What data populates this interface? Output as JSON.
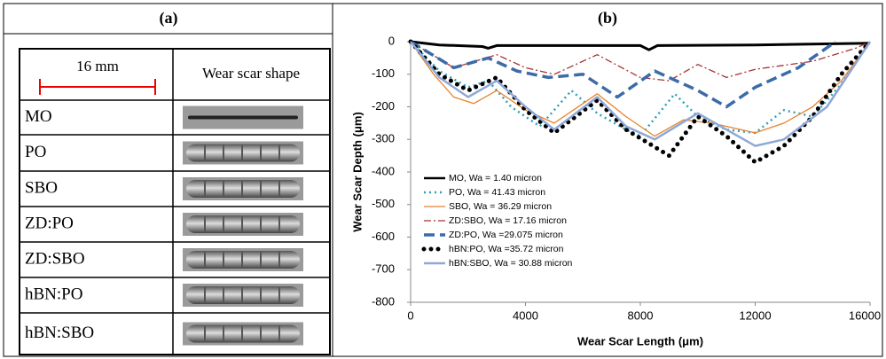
{
  "panel_a": {
    "title": "(a)",
    "header": [
      "16 mm",
      "Wear scar shape"
    ],
    "rows": [
      "MO",
      "PO",
      "SBO",
      "ZD:PO",
      "ZD:SBO",
      "hBN:PO",
      "hBN:SBO"
    ]
  },
  "chart_data": {
    "type": "line",
    "title": "(b)",
    "x_label": "Wear Scar Length (μm)",
    "y_label": "Wear Scar Depth (μm)",
    "xlim": [
      0,
      16000
    ],
    "ylim": [
      -800,
      0
    ],
    "xticks": [
      0,
      4000,
      8000,
      12000,
      16000
    ],
    "yticks": [
      0,
      -100,
      -200,
      -300,
      -400,
      -500,
      -600,
      -700,
      -800
    ],
    "legend": "lower-left",
    "series": [
      {
        "name": "MO, Wa = 1.40 micron",
        "color": "#000000",
        "style": "solid",
        "x": [
          0,
          1000,
          2500,
          2700,
          3000,
          8000,
          8300,
          8600,
          12000,
          16000
        ],
        "values": [
          0,
          -10,
          -15,
          -20,
          -12,
          -12,
          -25,
          -12,
          -10,
          -5
        ]
      },
      {
        "name": "PO, Wa = 41.43 micron",
        "color": "#2fa0b5",
        "style": "dotted",
        "x": [
          0,
          1000,
          2000,
          2700,
          3500,
          4500,
          5600,
          6500,
          7500,
          8000,
          9200,
          10000,
          11000,
          12000,
          13000,
          14000,
          15000,
          16000
        ],
        "values": [
          0,
          -90,
          -140,
          -120,
          -200,
          -260,
          -150,
          -220,
          -270,
          -290,
          -160,
          -230,
          -270,
          -280,
          -210,
          -230,
          -130,
          0
        ]
      },
      {
        "name": "SBO, Wa = 36.29 micron",
        "color": "#e8832a",
        "style": "solid-thin",
        "x": [
          0,
          800,
          1500,
          2200,
          3000,
          4000,
          5000,
          6000,
          6500,
          7500,
          8500,
          9500,
          10500,
          11500,
          12000,
          13000,
          14000,
          15000,
          16000
        ],
        "values": [
          0,
          -100,
          -170,
          -190,
          -150,
          -210,
          -250,
          -190,
          -160,
          -230,
          -290,
          -240,
          -250,
          -270,
          -280,
          -250,
          -200,
          -120,
          0
        ]
      },
      {
        "name": "ZD:SBO, Wa = 17.16 micron",
        "color": "#a83232",
        "style": "dashdot",
        "x": [
          0,
          1500,
          3000,
          4000,
          5000,
          6500,
          8000,
          9000,
          10000,
          11000,
          12000,
          14000,
          15500,
          16000
        ],
        "values": [
          0,
          -80,
          -40,
          -80,
          -100,
          -40,
          -110,
          -120,
          -70,
          -110,
          -85,
          -60,
          -20,
          0
        ]
      },
      {
        "name": "ZD:PO, Wa =29.075 micron",
        "color": "#3c6ba8",
        "style": "dashed",
        "x": [
          0,
          1500,
          2700,
          3700,
          4800,
          6000,
          7200,
          8500,
          10000,
          11000,
          12000,
          13500,
          14800
        ],
        "values": [
          0,
          -80,
          -50,
          -90,
          -110,
          -100,
          -170,
          -90,
          -150,
          -200,
          -140,
          -80,
          0
        ]
      },
      {
        "name": "hBN:PO, Wa =35.72 micron",
        "color": "#000000",
        "style": "dots",
        "x": [
          0,
          1000,
          2000,
          3000,
          4000,
          5000,
          6500,
          7500,
          9000,
          10000,
          11000,
          12000,
          13000,
          14000,
          15000,
          16000
        ],
        "values": [
          0,
          -100,
          -150,
          -110,
          -210,
          -280,
          -180,
          -270,
          -350,
          -230,
          -290,
          -370,
          -320,
          -230,
          -100,
          0
        ]
      },
      {
        "name": "hBN:SBO, Wa = 30.88 micron",
        "color": "#8fa8d8",
        "style": "solid",
        "x": [
          0,
          1000,
          2000,
          3000,
          4000,
          5000,
          6500,
          7500,
          8500,
          10000,
          11000,
          12000,
          13000,
          14500,
          16000
        ],
        "values": [
          0,
          -110,
          -170,
          -120,
          -200,
          -270,
          -170,
          -260,
          -300,
          -220,
          -270,
          -320,
          -300,
          -200,
          0
        ]
      }
    ]
  }
}
